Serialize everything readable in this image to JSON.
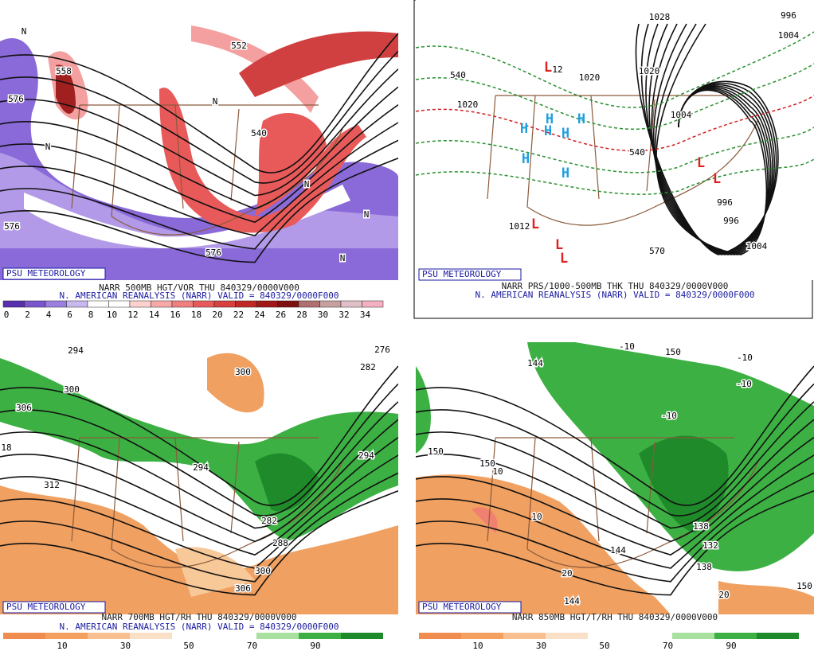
{
  "panels": [
    {
      "badge": "PSU METEOROLOGY",
      "title_line1": "NARR 500MB HGT/VOR THU 840329/0000V000",
      "title_line2": "N. AMERICAN REANALYSIS (NARR) VALID = 840329/0000F000",
      "colorbar_labels": [
        "0",
        "2",
        "4",
        "6",
        "8",
        "10",
        "12",
        "14",
        "16",
        "18",
        "20",
        "22",
        "24",
        "26",
        "28",
        "30",
        "32",
        "34"
      ],
      "map_labels": [
        "552",
        "558",
        "576",
        "540",
        "576",
        "576",
        "N",
        "N",
        "N",
        "N",
        "N",
        "N"
      ]
    },
    {
      "badge": "PSU METEOROLOGY",
      "title_line1": "NARR PRS/1000-500MB THK THU 840329/0000V000",
      "title_line2": "N. AMERICAN REANALYSIS (NARR) VALID = 840329/0000F000",
      "map_labels": [
        "1028",
        "1020",
        "1020",
        "1020",
        "540",
        "12",
        "1004",
        "540",
        "996",
        "996",
        "1004",
        "1012",
        "570",
        "996",
        "1004",
        "H",
        "H",
        "H",
        "H",
        "H",
        "H",
        "H",
        "L",
        "L",
        "L",
        "L",
        "L",
        "L"
      ]
    },
    {
      "badge": "PSU METEOROLOGY",
      "title_line1": "NARR 700MB HGT/RH THU 840329/0000V000",
      "title_line2": "N. AMERICAN REANALYSIS (NARR) VALID = 840329/0000F000",
      "colorbar_labels": [
        "10",
        "30",
        "50",
        "70",
        "90"
      ],
      "map_labels": [
        "294",
        "300",
        "300",
        "306",
        "18",
        "312",
        "294",
        "294",
        "282",
        "288",
        "300",
        "306",
        "282",
        "276"
      ]
    },
    {
      "badge": "PSU METEOROLOGY",
      "title_line1": "NARR 850MB HGT/T/RH THU 840329/0000V000",
      "colorbar_labels": [
        "10",
        "30",
        "50",
        "70",
        "90"
      ],
      "map_labels": [
        "150",
        "144",
        "-10",
        "-10",
        "-10",
        "-10",
        "150",
        "150",
        "10",
        "10",
        "138",
        "132",
        "144",
        "138",
        "144",
        "20",
        "20",
        "150"
      ]
    }
  ]
}
